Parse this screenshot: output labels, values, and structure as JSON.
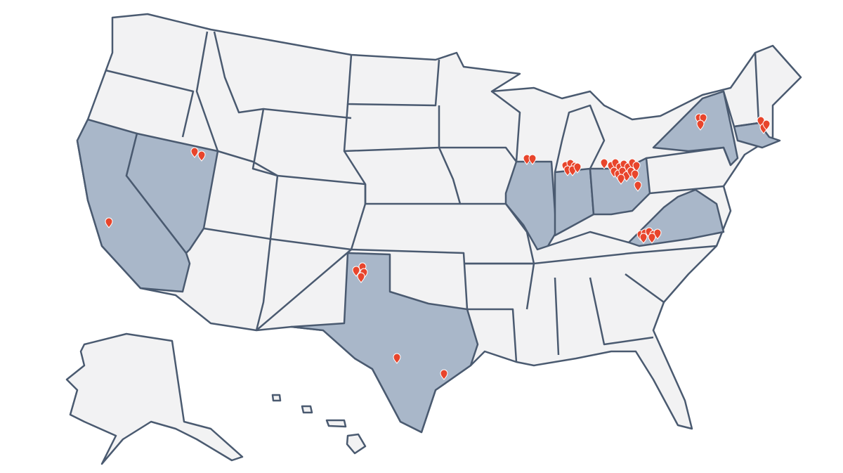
{
  "map": {
    "base_color": "#f2f2f3",
    "highlight_color": "#a9b7c9",
    "marker_color": "#e8452c"
  }
}
